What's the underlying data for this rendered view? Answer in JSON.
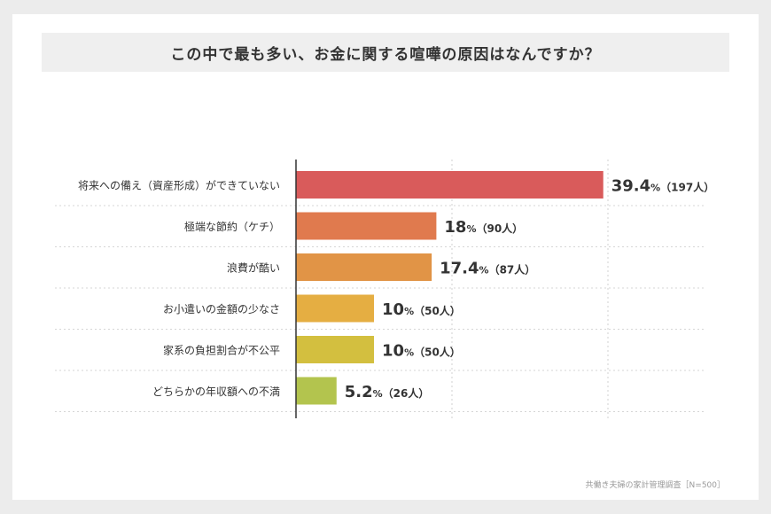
{
  "chart_data": {
    "type": "bar",
    "orientation": "horizontal",
    "title": "この中で最も多い、お金に関する喧嘩の原因はなんですか？",
    "categories": [
      "将来への備え（資産形成）ができていない",
      "極端な節約（ケチ）",
      "浪費が酷い",
      "お小遣いの金額の少なさ",
      "家系の負担割合が不公平",
      "どちらかの年収額への不満"
    ],
    "values": [
      39.4,
      18,
      17.4,
      10,
      10,
      5.2
    ],
    "value_labels": [
      "39.4",
      "18",
      "17.4",
      "10",
      "10",
      "5.2"
    ],
    "unit": "%",
    "counts": [
      "（197人）",
      "（90人）",
      "（87人）",
      "（50人）",
      "（50人）",
      "（26人）"
    ],
    "colors": [
      "#d95b5b",
      "#e07a4e",
      "#e19446",
      "#e5ae42",
      "#d3bf3f",
      "#b3c44e"
    ],
    "xlim": [
      0,
      40
    ],
    "grid": true
  },
  "source_note": "共働き夫婦の家計管理調査［N=500］"
}
